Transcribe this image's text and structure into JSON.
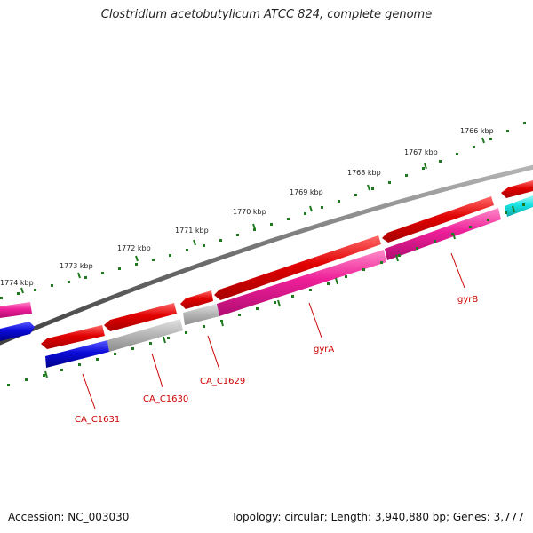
{
  "title": "Clostridium acetobutylicum ATCC 824, complete genome",
  "footer": {
    "accession": "Accession: NC_003030",
    "topology": "Topology: circular; Length: 3,940,880 bp; Genes: 3,777"
  },
  "ticks": [
    {
      "label": "1766 kbp",
      "kbp": 1766
    },
    {
      "label": "1767 kbp",
      "kbp": 1767
    },
    {
      "label": "1768 kbp",
      "kbp": 1768
    },
    {
      "label": "1769 kbp",
      "kbp": 1769
    },
    {
      "label": "1770 kbp",
      "kbp": 1770
    },
    {
      "label": "1771 kbp",
      "kbp": 1771
    },
    {
      "label": "1772 kbp",
      "kbp": 1772
    },
    {
      "label": "1773 kbp",
      "kbp": 1773
    },
    {
      "label": "1774 kbp",
      "kbp": 1774
    }
  ],
  "gene_labels": [
    {
      "name": "gyrB"
    },
    {
      "name": "gyrA"
    },
    {
      "name": "CA_C1629"
    },
    {
      "name": "CA_C1630"
    },
    {
      "name": "CA_C1631"
    }
  ],
  "colors": {
    "cds": "#ee0000",
    "gene_pink": "#ee1f99",
    "gene_gray": "#b3b3b3",
    "gene_blue": "#0b0bd9",
    "gene_cyan": "#19e3e3",
    "backbone": "#777777",
    "ticks": "#1f7a1f",
    "label": "#cc0000"
  }
}
